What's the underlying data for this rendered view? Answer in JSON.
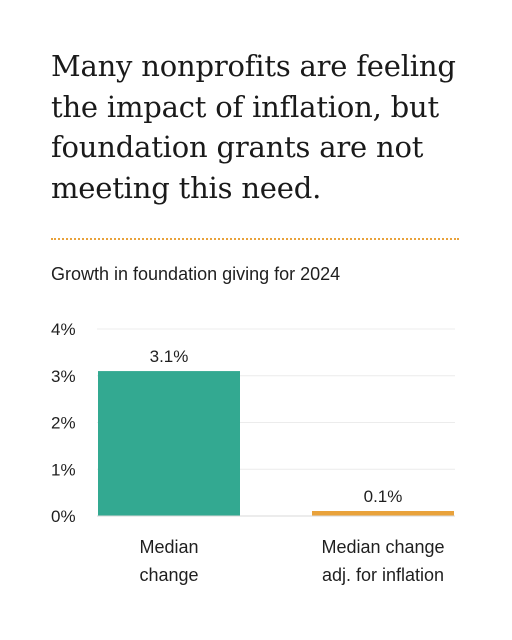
{
  "headline": "Many nonprofits are feeling the impact of inflation, but foundation grants are not meeting this need.",
  "colors": {
    "primary": "#33a991",
    "secondary": "#e9a23b",
    "divider": "#e9a23b",
    "grid": "#ececec"
  },
  "chart_data": {
    "type": "bar",
    "title": "Growth in foundation giving for 2024",
    "categories": [
      [
        "Median",
        "change"
      ],
      [
        "Median change",
        "adj. for inflation"
      ]
    ],
    "values": [
      3.1,
      0.1
    ],
    "data_labels": [
      "3.1%",
      "0.1%"
    ],
    "bar_colors": [
      "#33a991",
      "#e9a23b"
    ],
    "ylim": [
      0,
      4
    ],
    "yticks": [
      0,
      1,
      2,
      3,
      4
    ],
    "ytick_labels": [
      "0%",
      "1%",
      "2%",
      "3%",
      "4%"
    ],
    "grid": true,
    "legend": false
  }
}
